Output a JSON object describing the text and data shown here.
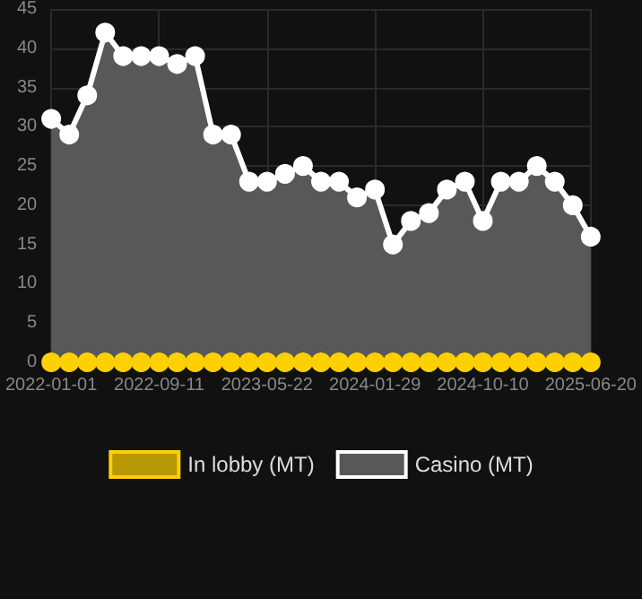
{
  "chart_data": {
    "type": "area",
    "categories": [
      "2022-01-01",
      null,
      null,
      null,
      null,
      null,
      "2022-09-11",
      null,
      null,
      null,
      null,
      null,
      "2023-05-22",
      null,
      null,
      null,
      null,
      null,
      "2024-01-29",
      null,
      null,
      null,
      null,
      null,
      "2024-10-10",
      null,
      null,
      null,
      null,
      null,
      "2025-06-20"
    ],
    "series": [
      {
        "name": "In lobby (MT)",
        "type": "line",
        "color": "#ffd000",
        "values": [
          0,
          0,
          0,
          0,
          0,
          0,
          0,
          0,
          0,
          0,
          0,
          0,
          0,
          0,
          0,
          0,
          0,
          0,
          0,
          0,
          0,
          0,
          0,
          0,
          0,
          0,
          0,
          0,
          0,
          0,
          0
        ]
      },
      {
        "name": "Casino (MT)",
        "color": "#ffffff",
        "values": [
          31,
          29,
          34,
          42,
          39,
          39,
          39,
          38,
          39,
          29,
          29,
          23,
          23,
          24,
          25,
          23,
          23,
          21,
          22,
          15,
          18,
          19,
          22,
          23,
          18,
          23,
          23,
          25,
          23,
          20,
          16
        ]
      }
    ],
    "ylim": [
      0,
      45
    ],
    "yticks": [
      0,
      5,
      10,
      15,
      20,
      25,
      30,
      35,
      40,
      45
    ],
    "grid": true,
    "legend": "bottom",
    "marker": "circle",
    "line_style": "solid"
  }
}
